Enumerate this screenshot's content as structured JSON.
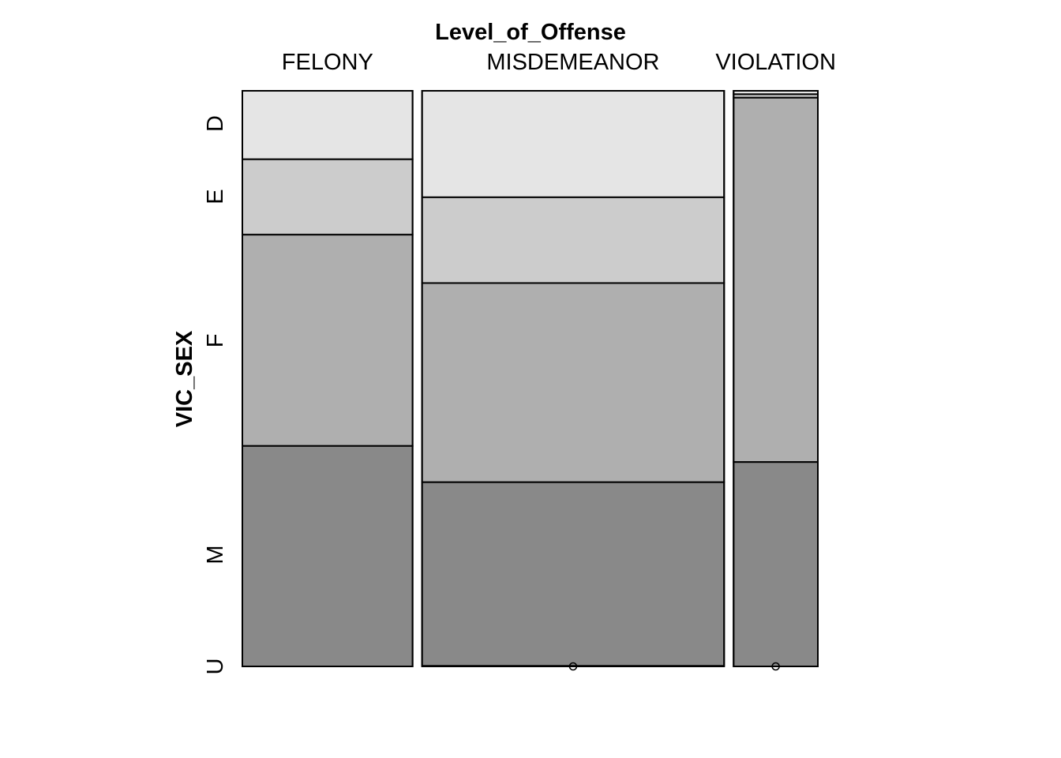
{
  "chart_data": {
    "type": "mosaic",
    "title": "Level_of_Offense",
    "ylabel": "VIC_SEX",
    "categories": [
      "FELONY",
      "MISDEMEANOR",
      "VIOLATION"
    ],
    "column_shares": [
      0.297,
      0.527,
      0.147
    ],
    "rows": [
      "D",
      "E",
      "F",
      "M",
      "U"
    ],
    "row_label_positions": [
      0.943,
      0.816,
      0.566,
      0.194,
      0.0
    ],
    "series": [
      {
        "name": "D",
        "color": "#e5e5e5",
        "values": [
          0.119,
          0.185,
          0.006
        ]
      },
      {
        "name": "E",
        "color": "#cccccc",
        "values": [
          0.131,
          0.149,
          0.006
        ]
      },
      {
        "name": "F",
        "color": "#afafaf",
        "values": [
          0.367,
          0.346,
          0.633
        ]
      },
      {
        "name": "M",
        "color": "#898989",
        "values": [
          0.383,
          0.319,
          0.355
        ]
      },
      {
        "name": "U",
        "color": "#6e6e6e",
        "values": [
          0.0,
          0.0,
          0.0
        ]
      }
    ],
    "zero_cells": [
      {
        "category": "MISDEMEANOR",
        "row": "U"
      },
      {
        "category": "VIOLATION",
        "row": "U"
      }
    ]
  }
}
